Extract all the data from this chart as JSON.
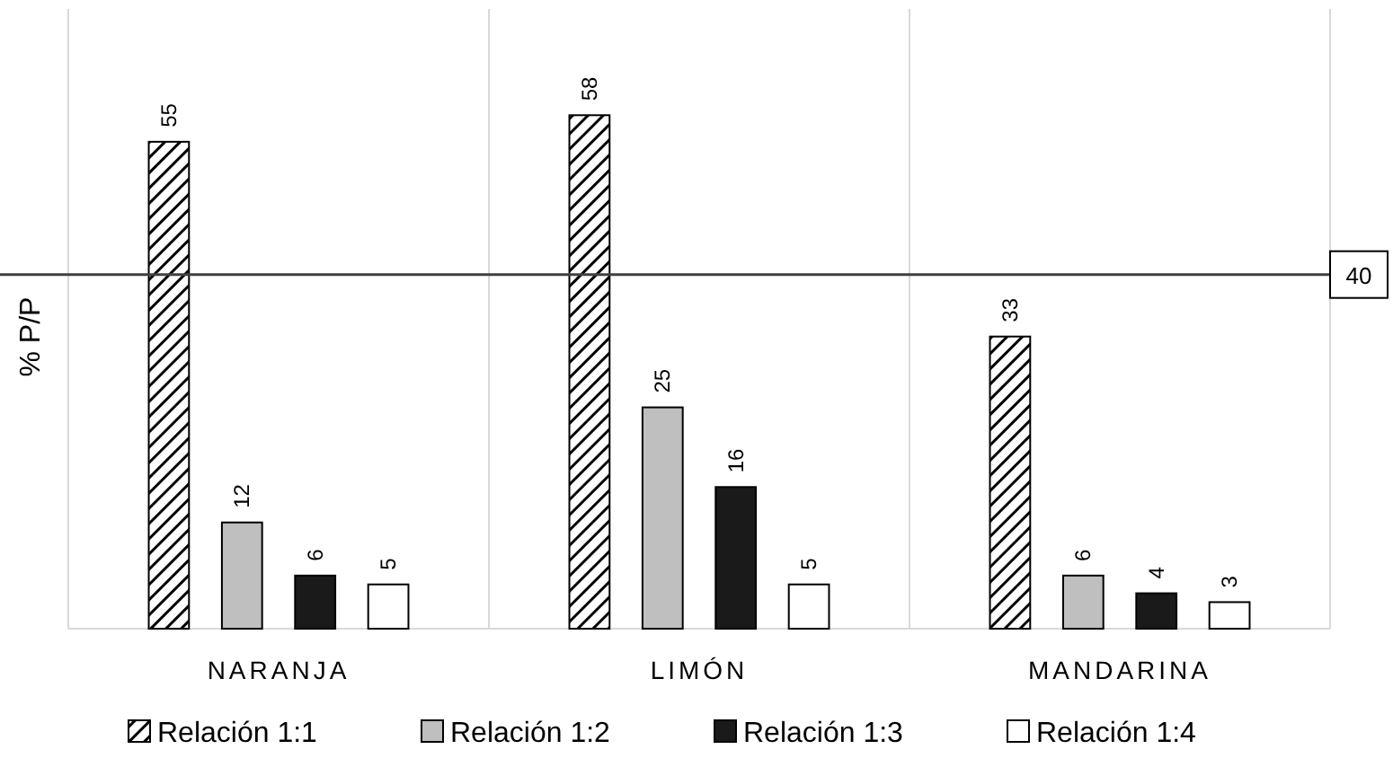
{
  "chart_data": {
    "type": "bar",
    "ylabel": "% P/P",
    "categories": [
      "NARANJA",
      "LIMÓN",
      "MANDARINA"
    ],
    "series": [
      {
        "name": "Relación 1:1",
        "color": "#000000",
        "values": [
          55,
          58,
          33
        ]
      },
      {
        "name": "Relación 1:2",
        "color": "#bfbfbf",
        "values": [
          12,
          25,
          6
        ]
      },
      {
        "name": "Relación 1:3",
        "color": "#1a1a1a",
        "values": [
          6,
          16,
          4
        ]
      },
      {
        "name": "Relación 1:4",
        "color": "#ffffff",
        "values": [
          5,
          5,
          3
        ]
      }
    ],
    "ylim": [
      0,
      70
    ],
    "tick_labels": "x",
    "grid": "x",
    "legend": "bottom",
    "data_labels": true,
    "ref_lines": [
      {
        "axis": "y",
        "value": 40,
        "label": "40",
        "color": "#404040"
      }
    ]
  }
}
